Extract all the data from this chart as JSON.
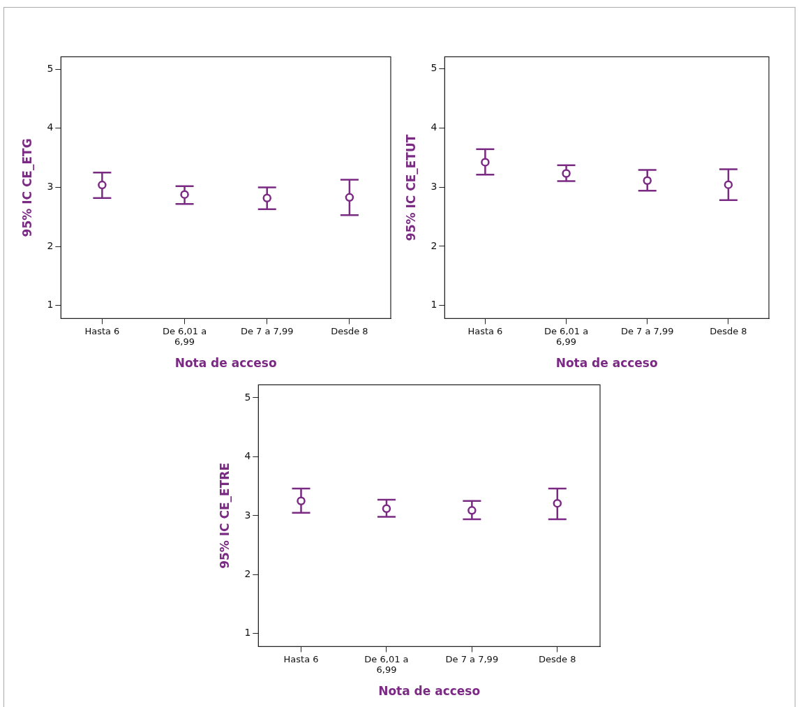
{
  "chart_data": [
    {
      "type": "scatter",
      "xlabel": "Nota de acceso",
      "ylabel": "95% IC CE_ETG",
      "categories": [
        "Hasta 6",
        "De 6,01 a 6,99",
        "De 7 a 7,99",
        "Desde 8"
      ],
      "values": [
        3.04,
        2.88,
        2.82,
        2.83
      ],
      "errors": [
        [
          2.82,
          3.25
        ],
        [
          2.72,
          3.02
        ],
        [
          2.63,
          3.0
        ],
        [
          2.53,
          3.13
        ]
      ],
      "color": "#7b2a84",
      "marker": "circle",
      "ylim": [
        0.78,
        5.21
      ],
      "yticks": [
        1,
        2,
        3,
        4,
        5
      ]
    },
    {
      "type": "scatter",
      "xlabel": "Nota de acceso",
      "ylabel": "95% IC CE_ETUT",
      "categories": [
        "Hasta 6",
        "De 6,01 a 6,99",
        "De 7 a 7,99",
        "Desde 8"
      ],
      "values": [
        3.42,
        3.23,
        3.11,
        3.04
      ],
      "errors": [
        [
          3.21,
          3.64
        ],
        [
          3.1,
          3.37
        ],
        [
          2.94,
          3.29
        ],
        [
          2.78,
          3.3
        ]
      ],
      "color": "#7b2a84",
      "marker": "circle",
      "ylim": [
        0.78,
        5.2
      ],
      "yticks": [
        1,
        2,
        3,
        4,
        5
      ]
    },
    {
      "type": "scatter",
      "xlabel": "Nota de acceso",
      "ylabel": "95% IC CE_ETRE",
      "categories": [
        "Hasta 6",
        "De 6,01 a 6,99",
        "De 7 a 7,99",
        "Desde 8"
      ],
      "values": [
        3.25,
        3.12,
        3.09,
        3.21
      ],
      "errors": [
        [
          3.05,
          3.46
        ],
        [
          2.98,
          3.27
        ],
        [
          2.94,
          3.25
        ],
        [
          2.94,
          3.46
        ]
      ],
      "color": "#7b2a84",
      "marker": "circle",
      "ylim": [
        0.78,
        5.22
      ],
      "yticks": [
        1,
        2,
        3,
        4,
        5
      ]
    }
  ]
}
